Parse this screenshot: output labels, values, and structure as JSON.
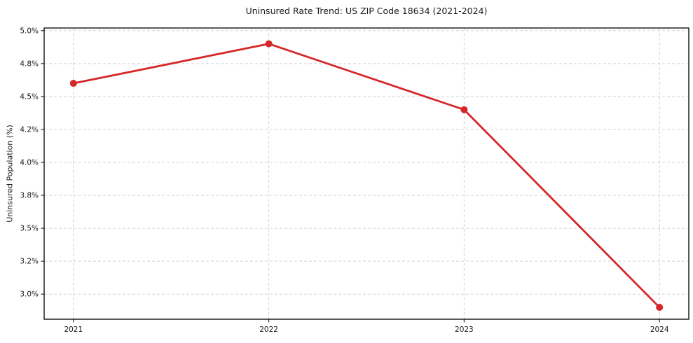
{
  "chart_data": {
    "type": "line",
    "title": "Uninsured Rate Trend: US ZIP Code 18634 (2021-2024)",
    "xlabel": "",
    "ylabel": "Uninsured Population (%)",
    "categories": [
      2021,
      2022,
      2023,
      2024
    ],
    "x_tick_labels": [
      "2021",
      "2022",
      "2023",
      "2024"
    ],
    "series": [
      {
        "name": "Uninsured rate",
        "values": [
          4.6,
          4.9,
          4.4,
          2.9
        ]
      }
    ],
    "y_ticks": [
      {
        "value": 3.0,
        "label": "3.0%"
      },
      {
        "value": 3.25,
        "label": "3.2%"
      },
      {
        "value": 3.5,
        "label": "3.5%"
      },
      {
        "value": 3.75,
        "label": "3.8%"
      },
      {
        "value": 4.0,
        "label": "4.0%"
      },
      {
        "value": 4.25,
        "label": "4.2%"
      },
      {
        "value": 4.5,
        "label": "4.5%"
      },
      {
        "value": 4.75,
        "label": "4.8%"
      },
      {
        "value": 5.0,
        "label": "5.0%"
      }
    ],
    "xlim": [
      2020.85,
      2024.15
    ],
    "ylim": [
      2.81,
      5.02
    ],
    "grid": "dashed",
    "legend": "none",
    "colors": {
      "line": "#d62728",
      "marker": "#d62728",
      "grid": "#cccccc",
      "spine": "#000000",
      "tick": "#333333",
      "text": "#1a1a1a",
      "background": "#ffffff"
    }
  }
}
